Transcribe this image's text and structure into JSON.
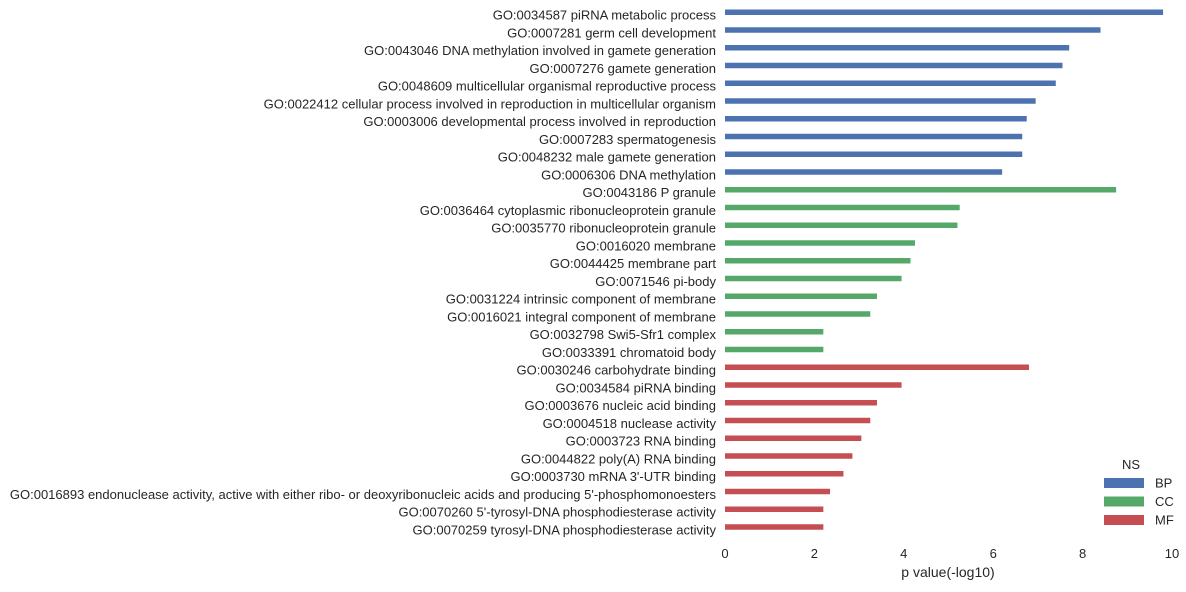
{
  "chart_data": {
    "type": "bar",
    "orientation": "horizontal",
    "xlabel": "p value(-log10)",
    "xlim": [
      0,
      10
    ],
    "xticks": [
      "0",
      "2",
      "4",
      "6",
      "8",
      "10"
    ],
    "grid": false,
    "legend": {
      "title": "NS",
      "placement": "bottom-right",
      "entries": [
        {
          "name": "BP",
          "color": "#4c72b0"
        },
        {
          "name": "CC",
          "color": "#55a868"
        },
        {
          "name": "MF",
          "color": "#c44e52"
        }
      ]
    },
    "categories": [
      "GO:0034587 piRNA metabolic process",
      "GO:0007281 germ cell development",
      "GO:0043046 DNA methylation involved in gamete generation",
      "GO:0007276 gamete generation",
      "GO:0048609 multicellular organismal reproductive process",
      "GO:0022412 cellular process involved in reproduction in multicellular organism",
      "GO:0003006 developmental process involved in reproduction",
      "GO:0007283 spermatogenesis",
      "GO:0048232 male gamete generation",
      "GO:0006306 DNA methylation",
      "GO:0043186 P granule",
      "GO:0036464 cytoplasmic ribonucleoprotein granule",
      "GO:0035770 ribonucleoprotein granule",
      "GO:0016020 membrane",
      "GO:0044425 membrane part",
      "GO:0071546 pi-body",
      "GO:0031224 intrinsic component of membrane",
      "GO:0016021 integral component of membrane",
      "GO:0032798 Swi5-Sfr1 complex",
      "GO:0033391 chromatoid body",
      "GO:0030246 carbohydrate binding",
      "GO:0034584 piRNA binding",
      "GO:0003676 nucleic acid binding",
      "GO:0004518 nuclease activity",
      "GO:0003723 RNA binding",
      "GO:0044822 poly(A) RNA binding",
      "GO:0003730 mRNA 3'-UTR binding",
      "GO:0016893 endonuclease activity, active with either ribo- or deoxyribonucleic acids and producing 5'-phosphomonoesters",
      "GO:0070260 5'-tyrosyl-DNA phosphodiesterase activity",
      "GO:0070259 tyrosyl-DNA phosphodiesterase activity"
    ],
    "values": [
      9.8,
      8.4,
      7.7,
      7.55,
      7.4,
      6.95,
      6.75,
      6.65,
      6.65,
      6.2,
      8.75,
      5.25,
      5.2,
      4.25,
      4.15,
      3.95,
      3.4,
      3.25,
      2.2,
      2.2,
      6.8,
      3.95,
      3.4,
      3.25,
      3.05,
      2.85,
      2.65,
      2.35,
      2.2,
      2.2
    ],
    "ns": [
      "BP",
      "BP",
      "BP",
      "BP",
      "BP",
      "BP",
      "BP",
      "BP",
      "BP",
      "BP",
      "CC",
      "CC",
      "CC",
      "CC",
      "CC",
      "CC",
      "CC",
      "CC",
      "CC",
      "CC",
      "MF",
      "MF",
      "MF",
      "MF",
      "MF",
      "MF",
      "MF",
      "MF",
      "MF",
      "MF"
    ]
  }
}
